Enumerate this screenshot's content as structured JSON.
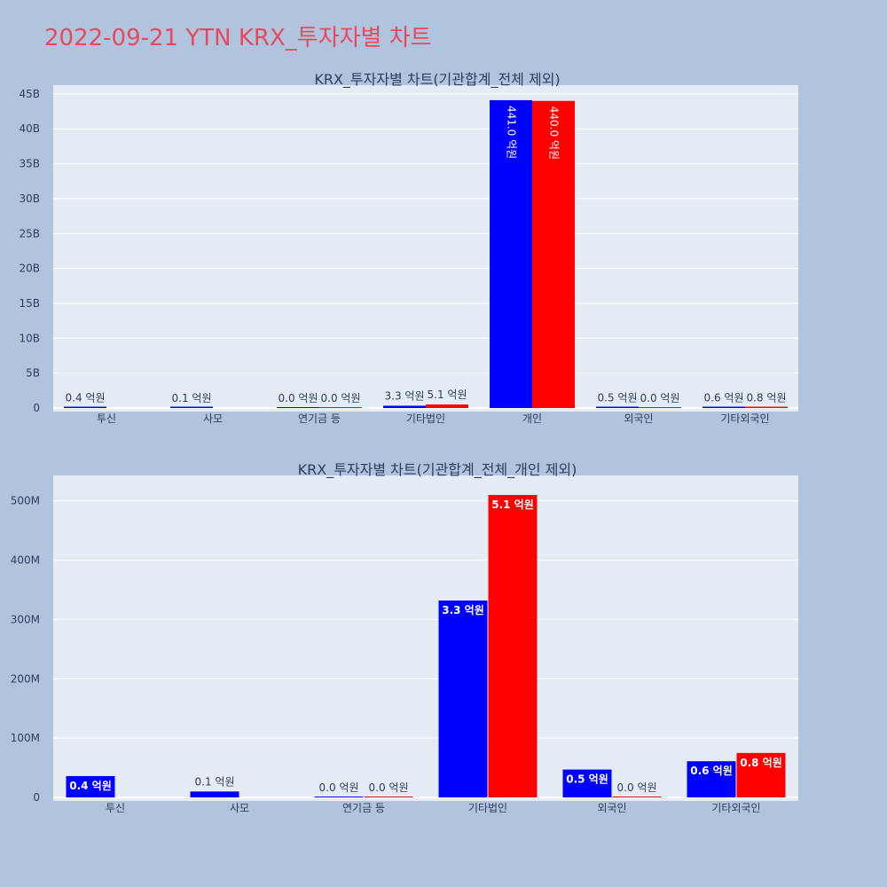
{
  "page": {
    "title": "2022-09-21 YTN KRX_투자자별 차트"
  },
  "colors": {
    "background": "#b0c4de",
    "plot_bg": "#e5ecf6",
    "title": "#e8495e",
    "series_buy": "#0000ff",
    "series_sell": "#ff0000",
    "text": "#2a3f5f"
  },
  "chart_data": [
    {
      "type": "bar",
      "title": "KRX_투자자별 차트(기관합계_전체 제외)",
      "categories": [
        "투신",
        "사모",
        "연기금 등",
        "기타법인",
        "개인",
        "외국인",
        "기타외국인"
      ],
      "ylim": [
        0,
        46000000000
      ],
      "yticks": [
        0,
        5000000000,
        10000000000,
        15000000000,
        20000000000,
        25000000000,
        30000000000,
        35000000000,
        40000000000,
        45000000000
      ],
      "ytick_labels": [
        "0",
        "5B",
        "10B",
        "15B",
        "20B",
        "25B",
        "30B",
        "35B",
        "40B",
        "45B"
      ],
      "grid": true,
      "legend": "none",
      "series": [
        {
          "color": "#0000ff",
          "values": [
            40000000,
            10000000,
            0,
            330000000,
            44100000000,
            50000000,
            60000000
          ],
          "labels": [
            "0.4 억원",
            "0.1 억원",
            "0.0 억원",
            "3.3 억원",
            "441.0 억원",
            "0.5 억원",
            "0.6 억원"
          ]
        },
        {
          "color": "#ff0000",
          "values": [
            null,
            null,
            0,
            510000000,
            44000000000,
            0,
            80000000
          ],
          "labels": [
            null,
            null,
            "0.0 억원",
            "5.1 억원",
            "440.0 억원",
            "0.0 억원",
            "0.8 억원"
          ]
        }
      ]
    },
    {
      "type": "bar",
      "title": "KRX_투자자별 차트(기관합계_전체_개인 제외)",
      "categories": [
        "투신",
        "사모",
        "연기금 등",
        "기타법인",
        "외국인",
        "기타외국인"
      ],
      "ylim": [
        0,
        540000000
      ],
      "yticks": [
        0,
        100000000,
        200000000,
        300000000,
        400000000,
        500000000
      ],
      "ytick_labels": [
        "0",
        "100M",
        "200M",
        "300M",
        "400M",
        "500M"
      ],
      "grid": true,
      "legend": "none",
      "series": [
        {
          "color": "#0000ff",
          "values": [
            36000000,
            10000000,
            0,
            332000000,
            47000000,
            61000000
          ],
          "labels": [
            "0.4 억원",
            "0.1 억원",
            "0.0 억원",
            "3.3 억원",
            "0.5 억원",
            "0.6 억원"
          ]
        },
        {
          "color": "#ff0000",
          "values": [
            null,
            null,
            0,
            510000000,
            0,
            75000000
          ],
          "labels": [
            null,
            null,
            "0.0 억원",
            "5.1 억원",
            "0.0 억원",
            "0.8 억원"
          ]
        }
      ]
    }
  ]
}
